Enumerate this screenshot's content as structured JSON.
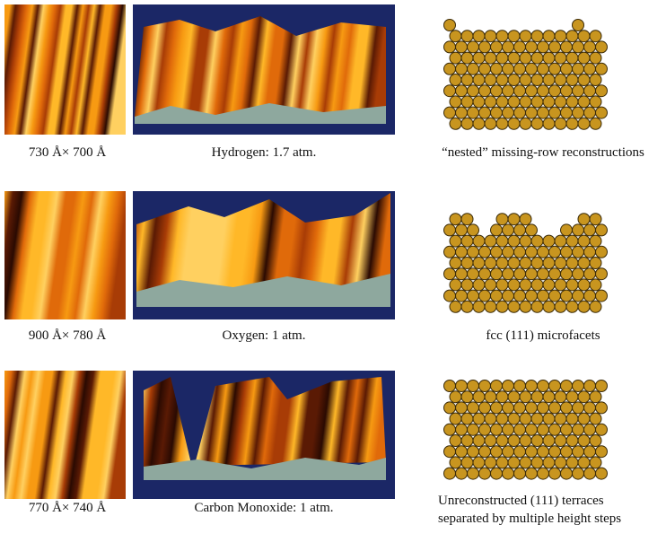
{
  "rows": [
    {
      "size_label": "730 Å× 700 Å",
      "gas_label": "Hydrogen: 1.7 atm.",
      "structure_label": "“nested” missing-row reconstructions"
    },
    {
      "size_label": "900 Å× 780 Å",
      "gas_label": "Oxygen: 1 atm.",
      "structure_label": "fcc (111) microfacets"
    },
    {
      "size_label": "770 Å× 740 Å",
      "gas_label": "Carbon Monoxide: 1 atm.",
      "structure_label": "Unreconstructed (111) terraces separated by multiple height steps"
    }
  ]
}
